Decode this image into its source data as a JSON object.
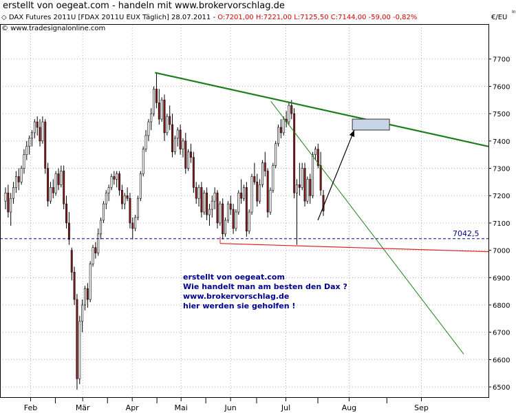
{
  "window_title": "erstellt von oegeat.com - handeln mit www.brokervorschlag.de",
  "header": {
    "instrument": "DAX Futures 2011U [FDAX 2011U EUX  Täglich] 28.07.2011 -",
    "ohlc": "O:7201,00 H:7221,00 L:7125,50 C:7144,00 -59,00 -0,82%",
    "source": "www.tradesignalonline.com",
    "copyright_symbol": "©"
  },
  "axis": {
    "unit": "€/EU",
    "tiny_label": "In",
    "y_ticks": [
      "7700",
      "7600",
      "7500",
      "7400",
      "7300",
      "7200",
      "7100",
      "7000",
      "6900",
      "6800",
      "6700",
      "6600",
      "6500"
    ],
    "x_ticks": [
      "Feb",
      "Mär",
      "Apr",
      "Mai",
      "Jun",
      "Jul",
      "Aug",
      "Sep"
    ]
  },
  "annotations": {
    "level_label": "7042,5",
    "text_lines": [
      "erstellt von oegeat.com",
      "Wie handelt man am besten den Dax ?",
      "www.brokervorschlag.de",
      "hier werden sie geholfen !"
    ]
  },
  "colors": {
    "candle_up": "#ffffff",
    "candle_down": "#8b1a1a",
    "trend_green": "#1a7f1a",
    "support_red": "#e02020",
    "level_dash": "#00008b",
    "arrow": "#000000",
    "target_box": "#c8d4e8"
  },
  "chart_data": {
    "type": "candlestick",
    "title": "DAX Futures 2011U [FDAX 2011U EUX  Täglich] 28.07.2011",
    "ylabel": "€/EU",
    "ylim": [
      6460,
      7790
    ],
    "y_ticks": [
      7700,
      7600,
      7500,
      7400,
      7300,
      7200,
      7100,
      7000,
      6900,
      6800,
      6700,
      6600,
      6500
    ],
    "x_labels": [
      "Feb",
      "Mär",
      "Apr",
      "Mai",
      "Jun",
      "Jul",
      "Aug",
      "Sep"
    ],
    "grid": true,
    "last_bar": {
      "date": "28.07.2011",
      "open": 7201.0,
      "high": 7221.0,
      "low": 7125.5,
      "close": 7144.0,
      "change": -59.0,
      "change_pct": -0.82
    },
    "horizontal_level": 7042.5,
    "candles": [
      {
        "o": 7180,
        "h": 7230,
        "l": 7150,
        "c": 7210
      },
      {
        "o": 7210,
        "h": 7240,
        "l": 7120,
        "c": 7140
      },
      {
        "o": 7140,
        "h": 7210,
        "l": 7090,
        "c": 7190
      },
      {
        "o": 7190,
        "h": 7250,
        "l": 7170,
        "c": 7230
      },
      {
        "o": 7230,
        "h": 7290,
        "l": 7210,
        "c": 7270
      },
      {
        "o": 7270,
        "h": 7300,
        "l": 7220,
        "c": 7250
      },
      {
        "o": 7250,
        "h": 7310,
        "l": 7240,
        "c": 7300
      },
      {
        "o": 7300,
        "h": 7370,
        "l": 7280,
        "c": 7350
      },
      {
        "o": 7350,
        "h": 7400,
        "l": 7330,
        "c": 7380
      },
      {
        "o": 7380,
        "h": 7420,
        "l": 7350,
        "c": 7410
      },
      {
        "o": 7410,
        "h": 7440,
        "l": 7380,
        "c": 7430
      },
      {
        "o": 7430,
        "h": 7480,
        "l": 7410,
        "c": 7470
      },
      {
        "o": 7470,
        "h": 7490,
        "l": 7420,
        "c": 7450
      },
      {
        "o": 7450,
        "h": 7480,
        "l": 7380,
        "c": 7400
      },
      {
        "o": 7400,
        "h": 7490,
        "l": 7390,
        "c": 7470
      },
      {
        "o": 7470,
        "h": 7480,
        "l": 7280,
        "c": 7300
      },
      {
        "o": 7300,
        "h": 7320,
        "l": 7160,
        "c": 7180
      },
      {
        "o": 7180,
        "h": 7250,
        "l": 7170,
        "c": 7230
      },
      {
        "o": 7230,
        "h": 7260,
        "l": 7190,
        "c": 7210
      },
      {
        "o": 7210,
        "h": 7290,
        "l": 7200,
        "c": 7280
      },
      {
        "o": 7280,
        "h": 7300,
        "l": 7220,
        "c": 7240
      },
      {
        "o": 7240,
        "h": 7310,
        "l": 7230,
        "c": 7290
      },
      {
        "o": 7290,
        "h": 7310,
        "l": 7150,
        "c": 7170
      },
      {
        "o": 7170,
        "h": 7200,
        "l": 7080,
        "c": 7100
      },
      {
        "o": 7100,
        "h": 7140,
        "l": 7020,
        "c": 7040
      },
      {
        "o": 7000,
        "h": 7010,
        "l": 6890,
        "c": 6920
      },
      {
        "o": 6920,
        "h": 6940,
        "l": 6800,
        "c": 6820
      },
      {
        "o": 6820,
        "h": 6840,
        "l": 6490,
        "c": 6530
      },
      {
        "o": 6530,
        "h": 6760,
        "l": 6510,
        "c": 6740
      },
      {
        "o": 6740,
        "h": 6820,
        "l": 6700,
        "c": 6800
      },
      {
        "o": 6800,
        "h": 6870,
        "l": 6780,
        "c": 6860
      },
      {
        "o": 6860,
        "h": 6880,
        "l": 6790,
        "c": 6820
      },
      {
        "o": 6820,
        "h": 6960,
        "l": 6810,
        "c": 6950
      },
      {
        "o": 6950,
        "h": 7020,
        "l": 6940,
        "c": 7010
      },
      {
        "o": 7010,
        "h": 7030,
        "l": 6970,
        "c": 6990
      },
      {
        "o": 6990,
        "h": 7080,
        "l": 6980,
        "c": 7060
      },
      {
        "o": 7060,
        "h": 7120,
        "l": 7040,
        "c": 7110
      },
      {
        "o": 7110,
        "h": 7180,
        "l": 7100,
        "c": 7170
      },
      {
        "o": 7170,
        "h": 7220,
        "l": 7150,
        "c": 7210
      },
      {
        "o": 7210,
        "h": 7240,
        "l": 7180,
        "c": 7230
      },
      {
        "o": 7230,
        "h": 7280,
        "l": 7220,
        "c": 7270
      },
      {
        "o": 7270,
        "h": 7290,
        "l": 7240,
        "c": 7260
      },
      {
        "o": 7260,
        "h": 7290,
        "l": 7230,
        "c": 7280
      },
      {
        "o": 7280,
        "h": 7290,
        "l": 7200,
        "c": 7220
      },
      {
        "o": 7220,
        "h": 7240,
        "l": 7150,
        "c": 7170
      },
      {
        "o": 7170,
        "h": 7210,
        "l": 7150,
        "c": 7200
      },
      {
        "o": 7200,
        "h": 7230,
        "l": 7180,
        "c": 7190
      },
      {
        "o": 7190,
        "h": 7210,
        "l": 7080,
        "c": 7100
      },
      {
        "o": 7100,
        "h": 7120,
        "l": 7040,
        "c": 7080
      },
      {
        "o": 7080,
        "h": 7130,
        "l": 7070,
        "c": 7120
      },
      {
        "o": 7120,
        "h": 7200,
        "l": 7110,
        "c": 7190
      },
      {
        "o": 7190,
        "h": 7290,
        "l": 7180,
        "c": 7280
      },
      {
        "o": 7280,
        "h": 7380,
        "l": 7270,
        "c": 7370
      },
      {
        "o": 7370,
        "h": 7440,
        "l": 7360,
        "c": 7420
      },
      {
        "o": 7420,
        "h": 7480,
        "l": 7400,
        "c": 7470
      },
      {
        "o": 7470,
        "h": 7520,
        "l": 7440,
        "c": 7500
      },
      {
        "o": 7500,
        "h": 7600,
        "l": 7490,
        "c": 7590
      },
      {
        "o": 7590,
        "h": 7650,
        "l": 7520,
        "c": 7540
      },
      {
        "o": 7540,
        "h": 7590,
        "l": 7460,
        "c": 7480
      },
      {
        "o": 7480,
        "h": 7560,
        "l": 7470,
        "c": 7550
      },
      {
        "o": 7550,
        "h": 7570,
        "l": 7400,
        "c": 7430
      },
      {
        "o": 7430,
        "h": 7500,
        "l": 7420,
        "c": 7490
      },
      {
        "o": 7490,
        "h": 7530,
        "l": 7440,
        "c": 7460
      },
      {
        "o": 7460,
        "h": 7500,
        "l": 7340,
        "c": 7360
      },
      {
        "o": 7360,
        "h": 7420,
        "l": 7350,
        "c": 7410
      },
      {
        "o": 7410,
        "h": 7450,
        "l": 7380,
        "c": 7440
      },
      {
        "o": 7440,
        "h": 7460,
        "l": 7350,
        "c": 7370
      },
      {
        "o": 7370,
        "h": 7410,
        "l": 7340,
        "c": 7400
      },
      {
        "o": 7400,
        "h": 7430,
        "l": 7280,
        "c": 7300
      },
      {
        "o": 7300,
        "h": 7370,
        "l": 7290,
        "c": 7360
      },
      {
        "o": 7360,
        "h": 7390,
        "l": 7320,
        "c": 7340
      },
      {
        "o": 7340,
        "h": 7360,
        "l": 7210,
        "c": 7230
      },
      {
        "o": 7230,
        "h": 7250,
        "l": 7170,
        "c": 7190
      },
      {
        "o": 7190,
        "h": 7240,
        "l": 7160,
        "c": 7230
      },
      {
        "o": 7230,
        "h": 7250,
        "l": 7120,
        "c": 7140
      },
      {
        "o": 7140,
        "h": 7220,
        "l": 7130,
        "c": 7210
      },
      {
        "o": 7210,
        "h": 7230,
        "l": 7110,
        "c": 7130
      },
      {
        "o": 7130,
        "h": 7170,
        "l": 7090,
        "c": 7150
      },
      {
        "o": 7150,
        "h": 7200,
        "l": 7120,
        "c": 7180
      },
      {
        "o": 7180,
        "h": 7230,
        "l": 7150,
        "c": 7210
      },
      {
        "o": 7210,
        "h": 7220,
        "l": 7080,
        "c": 7100
      },
      {
        "o": 7100,
        "h": 7180,
        "l": 7090,
        "c": 7170
      },
      {
        "o": 7170,
        "h": 7190,
        "l": 7040,
        "c": 7060
      },
      {
        "o": 7060,
        "h": 7120,
        "l": 7050,
        "c": 7110
      },
      {
        "o": 7110,
        "h": 7180,
        "l": 7100,
        "c": 7170
      },
      {
        "o": 7170,
        "h": 7200,
        "l": 7130,
        "c": 7150
      },
      {
        "o": 7150,
        "h": 7170,
        "l": 7060,
        "c": 7080
      },
      {
        "o": 7080,
        "h": 7150,
        "l": 7070,
        "c": 7140
      },
      {
        "o": 7140,
        "h": 7220,
        "l": 7130,
        "c": 7210
      },
      {
        "o": 7210,
        "h": 7260,
        "l": 7170,
        "c": 7190
      },
      {
        "o": 7190,
        "h": 7240,
        "l": 7180,
        "c": 7230
      },
      {
        "o": 7230,
        "h": 7250,
        "l": 7050,
        "c": 7070
      },
      {
        "o": 7070,
        "h": 7150,
        "l": 7060,
        "c": 7140
      },
      {
        "o": 7140,
        "h": 7280,
        "l": 7130,
        "c": 7270
      },
      {
        "o": 7270,
        "h": 7320,
        "l": 7240,
        "c": 7250
      },
      {
        "o": 7250,
        "h": 7280,
        "l": 7160,
        "c": 7180
      },
      {
        "o": 7180,
        "h": 7260,
        "l": 7170,
        "c": 7240
      },
      {
        "o": 7240,
        "h": 7330,
        "l": 7230,
        "c": 7320
      },
      {
        "o": 7320,
        "h": 7360,
        "l": 7270,
        "c": 7290
      },
      {
        "o": 7290,
        "h": 7300,
        "l": 7120,
        "c": 7140
      },
      {
        "o": 7140,
        "h": 7230,
        "l": 7130,
        "c": 7220
      },
      {
        "o": 7220,
        "h": 7320,
        "l": 7210,
        "c": 7310
      },
      {
        "o": 7310,
        "h": 7400,
        "l": 7300,
        "c": 7390
      },
      {
        "o": 7390,
        "h": 7460,
        "l": 7380,
        "c": 7450
      },
      {
        "o": 7450,
        "h": 7480,
        "l": 7410,
        "c": 7430
      },
      {
        "o": 7430,
        "h": 7490,
        "l": 7420,
        "c": 7480
      },
      {
        "o": 7480,
        "h": 7510,
        "l": 7450,
        "c": 7470
      },
      {
        "o": 7470,
        "h": 7540,
        "l": 7460,
        "c": 7530
      },
      {
        "o": 7530,
        "h": 7550,
        "l": 7480,
        "c": 7500
      },
      {
        "o": 7500,
        "h": 7520,
        "l": 7190,
        "c": 7210
      },
      {
        "o": 7210,
        "h": 7260,
        "l": 7020,
        "c": 7240
      },
      {
        "o": 7240,
        "h": 7320,
        "l": 7200,
        "c": 7230
      },
      {
        "o": 7230,
        "h": 7320,
        "l": 7220,
        "c": 7300
      },
      {
        "o": 7300,
        "h": 7320,
        "l": 7160,
        "c": 7180
      },
      {
        "o": 7180,
        "h": 7270,
        "l": 7170,
        "c": 7260
      },
      {
        "o": 7260,
        "h": 7280,
        "l": 7170,
        "c": 7200
      },
      {
        "o": 7200,
        "h": 7360,
        "l": 7190,
        "c": 7350
      },
      {
        "o": 7350,
        "h": 7380,
        "l": 7330,
        "c": 7370
      },
      {
        "o": 7370,
        "h": 7390,
        "l": 7300,
        "c": 7310
      },
      {
        "o": 7310,
        "h": 7360,
        "l": 7200,
        "c": 7220
      },
      {
        "o": 7201,
        "h": 7221,
        "l": 7125.5,
        "c": 7144
      }
    ],
    "trend_lines": [
      {
        "name": "downtrend-upper",
        "points": [
          [
            0.3173,
            7650
          ],
          [
            1.0,
            7380
          ]
        ]
      },
      {
        "name": "downtrend-steep",
        "points": [
          [
            0.5547,
            7545
          ],
          [
            0.9493,
            6620
          ]
        ]
      },
      {
        "name": "support",
        "points": [
          [
            0.4507,
            7025
          ],
          [
            1.0,
            6995
          ]
        ]
      }
    ],
    "target_zone": {
      "x_range": [
        0.7213,
        0.7973
      ],
      "y_range": [
        7440,
        7480
      ]
    },
    "arrow": {
      "from": [
        0.6507,
        7110
      ],
      "to": [
        0.7253,
        7440
      ]
    }
  }
}
